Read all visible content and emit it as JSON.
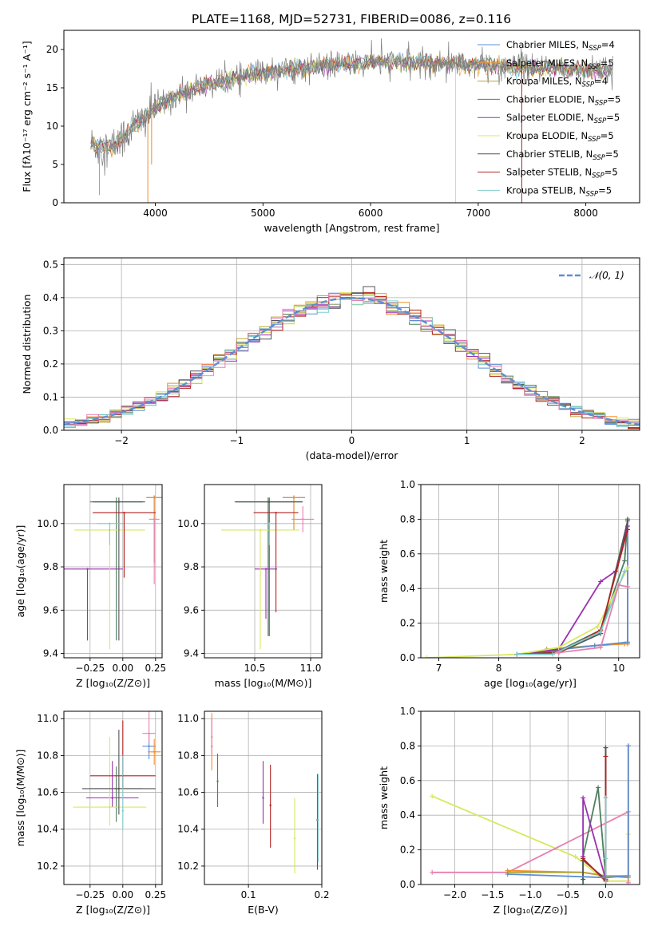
{
  "figure_title": "PLATE=1168, MJD=52731, FIBERID=0086, z=0.116",
  "colors": {
    "chabrier_miles": "#5b8fd4",
    "salpeter_miles": "#f28e2b",
    "kroupa_miles": "#b8a43a",
    "chabrier_elodie": "#4f7f5f",
    "salpeter_elodie": "#9b30b0",
    "kroupa_elodie": "#d8e860",
    "chabrier_stelib": "#555555",
    "salpeter_stelib": "#b22222",
    "kroupa_stelib": "#80cccc",
    "pink": "#e87fb0",
    "normal_curve": "#5b8fd4",
    "grid": "#b0b0b0"
  },
  "chart_data": [
    {
      "id": "spectrum",
      "type": "line",
      "xlabel": "wavelength [Angstrom, rest frame]",
      "ylabel": "Flux [fλ10⁻¹⁷ erg cm⁻² s⁻¹ A⁻¹]",
      "xlim": [
        3150,
        8500
      ],
      "ylim": [
        0,
        22.5
      ],
      "xticks": [
        4000,
        5000,
        6000,
        7000,
        8000
      ],
      "yticks": [
        0,
        5,
        10,
        15,
        20
      ],
      "grid": false,
      "legend_position": "right",
      "legend": [
        {
          "label": "Chabrier MILES, N",
          "sub": "SSP",
          "suffix": "=4",
          "color_key": "chabrier_miles"
        },
        {
          "label": "Salpeter MILES, N",
          "sub": "SSP",
          "suffix": "=5",
          "color_key": "salpeter_miles"
        },
        {
          "label": "Kroupa MILES, N",
          "sub": "SSP",
          "suffix": "=4",
          "color_key": "kroupa_miles"
        },
        {
          "label": "Chabrier ELODIE, N",
          "sub": "SSP",
          "suffix": "=5",
          "color_key": "chabrier_elodie"
        },
        {
          "label": "Salpeter ELODIE, N",
          "sub": "SSP",
          "suffix": "=5",
          "color_key": "salpeter_elodie"
        },
        {
          "label": "Kroupa ELODIE, N",
          "sub": "SSP",
          "suffix": "=5",
          "color_key": "kroupa_elodie"
        },
        {
          "label": "Chabrier STELIB, N",
          "sub": "SSP",
          "suffix": "=5",
          "color_key": "chabrier_stelib"
        },
        {
          "label": "Salpeter STELIB, N",
          "sub": "SSP",
          "suffix": "=5",
          "color_key": "salpeter_stelib"
        },
        {
          "label": "Kroupa STELIB, N",
          "sub": "SSP",
          "suffix": "=5",
          "color_key": "kroupa_stelib"
        }
      ],
      "continuum_x": [
        3400,
        3600,
        3700,
        3800,
        3900,
        4000,
        4200,
        4500,
        5000,
        5500,
        6000,
        6500,
        7000,
        7500,
        8000,
        8250
      ],
      "continuum_y": [
        7.5,
        7.2,
        8.5,
        10,
        11,
        12.5,
        14,
        15.5,
        17,
        17.8,
        18.3,
        18.3,
        18,
        17.5,
        17.4,
        17.3
      ],
      "dips": [
        {
          "x": 3480,
          "y": 1
        },
        {
          "x": 3930,
          "y": 0
        },
        {
          "x": 3965,
          "y": 5
        },
        {
          "x": 6790,
          "y": 0
        },
        {
          "x": 7405,
          "y": 0
        }
      ]
    },
    {
      "id": "residuals",
      "type": "line",
      "xlabel": "(data-model)/error",
      "ylabel": "Normed distribution",
      "xlim": [
        -2.5,
        2.5
      ],
      "ylim": [
        0,
        0.52
      ],
      "xticks": [
        -2,
        -1,
        0,
        1,
        2
      ],
      "yticks": [
        0.0,
        0.1,
        0.2,
        0.3,
        0.4,
        0.5
      ],
      "grid": true,
      "legend_position": "top-right",
      "legend_label": "𝒩(0, 1)",
      "bin_width": 0.1,
      "normal_mean": 0,
      "normal_sigma": 1
    },
    {
      "id": "age_vs_Z",
      "type": "scatter",
      "xlabel": "Z [log₁₀(Z/Z⊙)]",
      "ylabel": "age  [log₁₀(age/yr)]",
      "xlim": [
        -0.45,
        0.3
      ],
      "ylim": [
        9.38,
        10.18
      ],
      "xticks": [
        -0.25,
        0.0,
        0.25
      ],
      "yticks": [
        9.4,
        9.6,
        9.8,
        10.0
      ],
      "grid": true,
      "points": [
        {
          "x": 0.24,
          "y": 10.12,
          "xerr": 0.06,
          "yerr": [
            0.01,
            0.3
          ],
          "color_key": "chabrier_miles"
        },
        {
          "x": 0.24,
          "y": 10.12,
          "xerr": 0.06,
          "yerr": [
            0.01,
            0.3
          ],
          "color_key": "salpeter_miles"
        },
        {
          "x": -0.05,
          "y": 10.1,
          "xerr": 0.2,
          "yerr": [
            0.02,
            0.64
          ],
          "color_key": "chabrier_elodie"
        },
        {
          "x": -0.27,
          "y": 9.79,
          "xerr": 0.27,
          "yerr": [
            0.0,
            0.33
          ],
          "color_key": "salpeter_elodie"
        },
        {
          "x": -0.1,
          "y": 9.97,
          "xerr": 0.27,
          "yerr": [
            0.0,
            0.55
          ],
          "color_key": "kroupa_elodie"
        },
        {
          "x": -0.03,
          "y": 10.1,
          "xerr": 0.2,
          "yerr": [
            0.02,
            0.64
          ],
          "color_key": "chabrier_stelib"
        },
        {
          "x": 0.01,
          "y": 10.05,
          "xerr": 0.24,
          "yerr": [
            0.0,
            0.3
          ],
          "color_key": "salpeter_stelib"
        },
        {
          "x": -0.1,
          "y": 10.0,
          "xerr": 0.1,
          "yerr": [
            0.0,
            0.1
          ],
          "color_key": "kroupa_stelib"
        },
        {
          "x": 0.24,
          "y": 10.02,
          "xerr": 0.04,
          "yerr": [
            0.0,
            0.3
          ],
          "color_key": "pink"
        }
      ]
    },
    {
      "id": "age_vs_mass",
      "type": "scatter",
      "xlabel": "mass [log₁₀(M/M⊙)]",
      "ylabel": "",
      "xlim": [
        10.05,
        11.1
      ],
      "ylim": [
        9.38,
        10.18
      ],
      "xticks": [
        10.5,
        11.0
      ],
      "yticks": [
        9.4,
        9.6,
        9.8,
        10.0
      ],
      "grid": true,
      "points": [
        {
          "x": 10.85,
          "y": 10.12,
          "xerr": 0.1,
          "yerr": [
            0.01,
            0.15
          ],
          "color_key": "chabrier_miles"
        },
        {
          "x": 10.85,
          "y": 10.12,
          "xerr": 0.1,
          "yerr": [
            0.01,
            0.15
          ],
          "color_key": "salpeter_miles"
        },
        {
          "x": 10.62,
          "y": 10.1,
          "xerr": 0.3,
          "yerr": [
            0.02,
            0.62
          ],
          "color_key": "chabrier_elodie"
        },
        {
          "x": 10.6,
          "y": 9.79,
          "xerr": 0.1,
          "yerr": [
            0.0,
            0.23
          ],
          "color_key": "salpeter_elodie"
        },
        {
          "x": 10.55,
          "y": 9.97,
          "xerr": 0.35,
          "yerr": [
            0.0,
            0.55
          ],
          "color_key": "kroupa_elodie"
        },
        {
          "x": 10.63,
          "y": 10.1,
          "xerr": 0.3,
          "yerr": [
            0.02,
            0.62
          ],
          "color_key": "chabrier_stelib"
        },
        {
          "x": 10.69,
          "y": 10.05,
          "xerr": 0.2,
          "yerr": [
            0.0,
            0.46
          ],
          "color_key": "salpeter_stelib"
        },
        {
          "x": 10.63,
          "y": 10.0,
          "xerr": 0.05,
          "yerr": [
            0.0,
            0.1
          ],
          "color_key": "kroupa_stelib"
        },
        {
          "x": 10.93,
          "y": 10.02,
          "xerr": 0.1,
          "yerr": [
            0.06,
            0.06
          ],
          "color_key": "pink"
        }
      ]
    },
    {
      "id": "weight_vs_age",
      "type": "line",
      "xlabel": "age  [log₁₀(age/yr)]",
      "ylabel": "mass weight",
      "xlim": [
        6.7,
        10.35
      ],
      "ylim": [
        0,
        1.0
      ],
      "xticks": [
        7,
        8,
        9,
        10
      ],
      "yticks": [
        0.0,
        0.2,
        0.4,
        0.6,
        0.8,
        1.0
      ],
      "grid": true,
      "series": [
        {
          "color_key": "salpeter_miles",
          "x": [
            8.8,
            9.6,
            10.1,
            10.15,
            10.15
          ],
          "y": [
            0.04,
            0.07,
            0.08,
            0.08,
            0.8
          ]
        },
        {
          "color_key": "kroupa_miles",
          "x": [
            8.8,
            9.6,
            10.15
          ],
          "y": [
            0.05,
            0.07,
            0.09
          ]
        },
        {
          "color_key": "chabrier_miles",
          "x": [
            8.8,
            9.6,
            10.15,
            10.15
          ],
          "y": [
            0.04,
            0.07,
            0.09,
            0.8
          ]
        },
        {
          "color_key": "chabrier_elodie",
          "x": [
            8.3,
            9.0,
            9.7,
            10.1,
            10.15
          ],
          "y": [
            0.02,
            0.04,
            0.16,
            0.56,
            0.8
          ]
        },
        {
          "color_key": "salpeter_elodie",
          "x": [
            8.3,
            9.0,
            9.7,
            9.95,
            10.15
          ],
          "y": [
            0.02,
            0.05,
            0.44,
            0.5,
            0.76
          ]
        },
        {
          "color_key": "kroupa_elodie",
          "x": [
            6.8,
            8.3,
            9.0,
            9.65,
            10.15
          ],
          "y": [
            0.0,
            0.02,
            0.06,
            0.18,
            0.52
          ]
        },
        {
          "color_key": "chabrier_stelib",
          "x": [
            8.3,
            9.0,
            9.7,
            10.15
          ],
          "y": [
            0.02,
            0.03,
            0.14,
            0.79
          ]
        },
        {
          "color_key": "salpeter_stelib",
          "x": [
            8.3,
            9.0,
            9.7,
            10.15
          ],
          "y": [
            0.02,
            0.03,
            0.16,
            0.74
          ]
        },
        {
          "color_key": "kroupa_stelib",
          "x": [
            8.3,
            8.9,
            9.7,
            10.1
          ],
          "y": [
            0.02,
            0.02,
            0.15,
            0.5
          ]
        },
        {
          "color_key": "pink",
          "x": [
            9.0,
            9.7,
            10.0,
            10.15
          ],
          "y": [
            0.03,
            0.06,
            0.42,
            0.41
          ]
        }
      ]
    },
    {
      "id": "mass_vs_Z",
      "type": "scatter",
      "xlabel": "Z [log₁₀(Z/Z⊙)]",
      "ylabel": "mass [log₁₀(M/M⊙)]",
      "xlim": [
        -0.45,
        0.3
      ],
      "ylim": [
        10.1,
        11.04
      ],
      "xticks": [
        -0.25,
        0.0,
        0.25
      ],
      "yticks": [
        10.2,
        10.4,
        10.6,
        10.8,
        11.0
      ],
      "grid": true,
      "points": [
        {
          "x": 0.2,
          "y": 10.85,
          "xerr": 0.05,
          "yerr": [
            0.07,
            0.07
          ],
          "color_key": "chabrier_miles"
        },
        {
          "x": 0.24,
          "y": 10.82,
          "xerr": 0.05,
          "yerr": [
            0.07,
            0.07
          ],
          "color_key": "salpeter_miles"
        },
        {
          "x": -0.05,
          "y": 10.62,
          "xerr": 0.2,
          "yerr": [
            0.12,
            0.18
          ],
          "color_key": "chabrier_elodie"
        },
        {
          "x": -0.08,
          "y": 10.57,
          "xerr": 0.2,
          "yerr": [
            0.2,
            0.05
          ],
          "color_key": "salpeter_elodie"
        },
        {
          "x": -0.1,
          "y": 10.52,
          "xerr": 0.28,
          "yerr": [
            0.38,
            0.1
          ],
          "color_key": "kroupa_elodie"
        },
        {
          "x": -0.03,
          "y": 10.62,
          "xerr": 0.28,
          "yerr": [
            0.32,
            0.14
          ],
          "color_key": "chabrier_stelib"
        },
        {
          "x": 0.0,
          "y": 10.69,
          "xerr": 0.25,
          "yerr": [
            0.3,
            0.07
          ],
          "color_key": "salpeter_stelib"
        },
        {
          "x": 0.0,
          "y": 10.5,
          "xerr": 0.0,
          "yerr": [
            0.3,
            0.1
          ],
          "color_key": "kroupa_stelib"
        },
        {
          "x": 0.2,
          "y": 10.92,
          "xerr": 0.05,
          "yerr": [
            0.12,
            0.05
          ],
          "color_key": "pink"
        }
      ]
    },
    {
      "id": "mass_vs_ebv",
      "type": "scatter",
      "xlabel": "E(B-V)",
      "ylabel": "",
      "xlim": [
        0.04,
        0.2
      ],
      "ylim": [
        10.1,
        11.04
      ],
      "xticks": [
        0.1,
        0.2
      ],
      "yticks": [
        10.2,
        10.4,
        10.6,
        10.8,
        11.0
      ],
      "grid": true,
      "points": [
        {
          "x": 0.05,
          "y": 10.85,
          "yerr": [
            0.18,
            0.13
          ],
          "color_key": "salpeter_miles"
        },
        {
          "x": 0.05,
          "y": 10.9,
          "yerr": [
            0.1,
            0.1
          ],
          "color_key": "pink"
        },
        {
          "x": 0.058,
          "y": 10.66,
          "yerr": [
            0.15,
            0.14
          ],
          "color_key": "chabrier_elodie"
        },
        {
          "x": 0.12,
          "y": 10.57,
          "yerr": [
            0.2,
            0.14
          ],
          "color_key": "salpeter_elodie"
        },
        {
          "x": 0.13,
          "y": 10.53,
          "yerr": [
            0.22,
            0.23
          ],
          "color_key": "salpeter_stelib"
        },
        {
          "x": 0.163,
          "y": 10.35,
          "yerr": [
            0.22,
            0.19
          ],
          "color_key": "kroupa_elodie"
        },
        {
          "x": 0.194,
          "y": 10.45,
          "yerr": [
            0.25,
            0.27
          ],
          "color_key": "chabrier_stelib"
        },
        {
          "x": 0.195,
          "y": 10.45,
          "yerr": [
            0.25,
            0.23
          ],
          "color_key": "kroupa_stelib"
        }
      ]
    },
    {
      "id": "weight_vs_Z",
      "type": "line",
      "xlabel": "Z [log₁₀(Z/Z⊙)]",
      "ylabel": "mass weight",
      "xlim": [
        -2.45,
        0.45
      ],
      "ylim": [
        0,
        1.0
      ],
      "xticks": [
        -2.0,
        -1.5,
        -1.0,
        -0.5,
        0.0
      ],
      "yticks": [
        0.0,
        0.2,
        0.4,
        0.6,
        0.8,
        1.0
      ],
      "grid": true,
      "series": [
        {
          "color_key": "kroupa_elodie",
          "x": [
            -2.3,
            -0.4,
            0.0,
            0.3,
            0.3
          ],
          "y": [
            0.51,
            0.16,
            0.02,
            0.02,
            0.29
          ]
        },
        {
          "color_key": "pink",
          "x": [
            -2.3,
            -1.3,
            0.3,
            0.3
          ],
          "y": [
            0.07,
            0.07,
            0.42,
            0.01
          ]
        },
        {
          "color_key": "salpeter_miles",
          "x": [
            -1.3,
            -0.3,
            0.0,
            0.3,
            0.3
          ],
          "y": [
            0.08,
            0.07,
            0.05,
            0.05,
            0.8
          ]
        },
        {
          "color_key": "kroupa_miles",
          "x": [
            -1.3,
            -0.3,
            0.0,
            0.3
          ],
          "y": [
            0.07,
            0.07,
            0.05,
            0.04
          ]
        },
        {
          "color_key": "chabrier_elodie",
          "x": [
            -0.3,
            -0.3,
            -0.1,
            0.0,
            0.0
          ],
          "y": [
            0.0,
            0.16,
            0.56,
            0.04,
            0.79
          ]
        },
        {
          "color_key": "salpeter_elodie",
          "x": [
            -0.3,
            -0.3,
            0.0,
            0.0
          ],
          "y": [
            0.16,
            0.5,
            0.03,
            0.04
          ]
        },
        {
          "color_key": "chabrier_stelib",
          "x": [
            -0.3,
            -0.3,
            0.0,
            0.0
          ],
          "y": [
            0.03,
            0.14,
            0.03,
            0.79
          ]
        },
        {
          "color_key": "salpeter_stelib",
          "x": [
            -0.3,
            0.0,
            0.0
          ],
          "y": [
            0.15,
            0.02,
            0.74
          ]
        },
        {
          "color_key": "kroupa_stelib",
          "x": [
            0.0,
            0.0,
            0.0
          ],
          "y": [
            0.0,
            0.5,
            0.15
          ]
        },
        {
          "color_key": "chabrier_miles",
          "x": [
            -1.3,
            0.0,
            0.3,
            0.3
          ],
          "y": [
            0.06,
            0.04,
            0.05,
            0.8
          ]
        }
      ]
    }
  ]
}
